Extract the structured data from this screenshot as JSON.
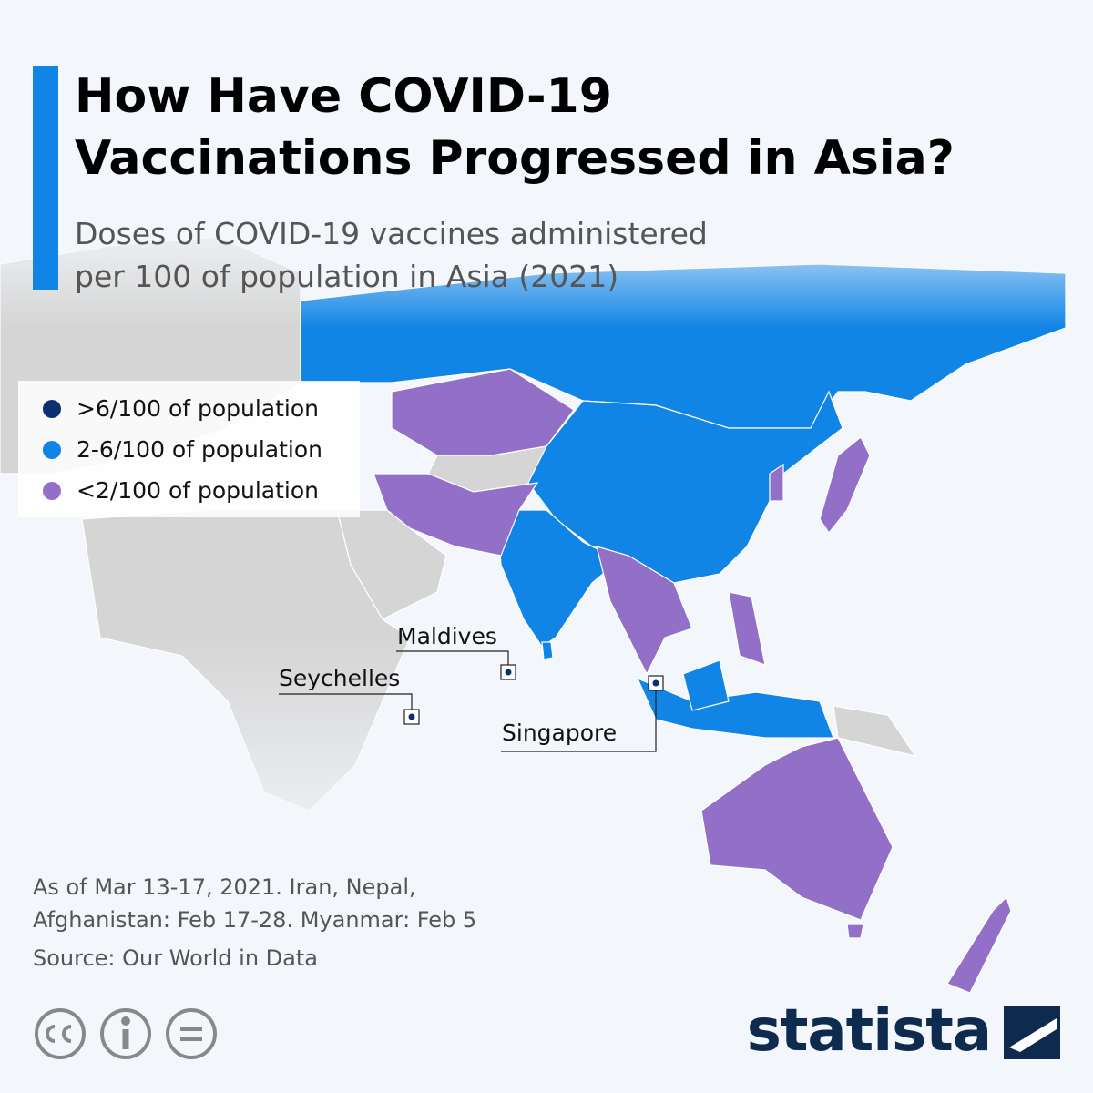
{
  "header": {
    "title": [
      "How Have COVID-19",
      "Vaccinations Progressed in Asia?"
    ],
    "subtitle": [
      "Doses of COVID-19 vaccines administered",
      "per 100 of population in Asia (2021)"
    ]
  },
  "legend": [
    {
      "label": ">6/100 of population",
      "color": "#0e2f6f"
    },
    {
      "label": "2-6/100 of population",
      "color": "#1185e6"
    },
    {
      "label": "<2/100 of population",
      "color": "#9370c8"
    }
  ],
  "callouts": [
    {
      "label": "Maldives"
    },
    {
      "label": "Seychelles"
    },
    {
      "label": "Singapore"
    }
  ],
  "notes": [
    "As of Mar 13-17, 2021. Iran, Nepal,",
    "Afghanistan: Feb 17-28. Myanmar: Feb 5"
  ],
  "source": "Source: Our World in Data",
  "logo": "statista"
}
